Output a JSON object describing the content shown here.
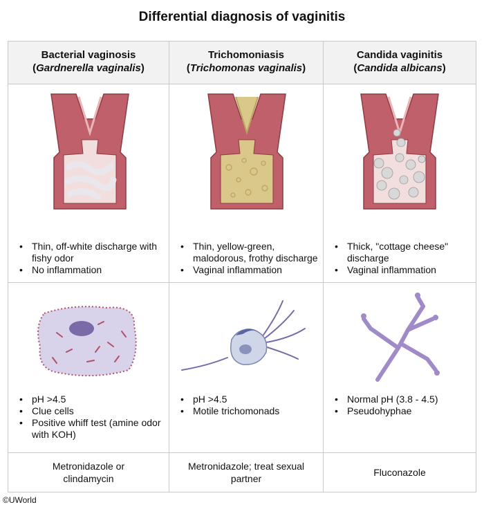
{
  "title": "Differential diagnosis of vaginitis",
  "columns": [
    {
      "name": "Bacterial vaginosis",
      "organism": "Gardnerella vaginalis",
      "clinical": [
        "Thin, off-white discharge with fishy odor",
        "No inflammation"
      ],
      "micro": [
        "pH >4.5",
        "Clue cells",
        "Positive whiff test (amine odor with KOH)"
      ],
      "treatment": "Metronidazole or clindamycin"
    },
    {
      "name": "Trichomoniasis",
      "organism": "Trichomonas vaginalis",
      "clinical": [
        "Thin, yellow-green, malodorous, frothy discharge",
        "Vaginal inflammation"
      ],
      "micro": [
        "pH >4.5",
        "Motile trichomonads"
      ],
      "treatment": "Metronidazole; treat sexual partner"
    },
    {
      "name": "Candida vaginitis",
      "organism": "Candida albicans",
      "clinical": [
        "Thick, \"cottage cheese\" discharge",
        "Vaginal inflammation"
      ],
      "micro": [
        "Normal pH (3.8 - 4.5)",
        "Pseudohyphae"
      ],
      "treatment": "Fluconazole"
    }
  ],
  "copyright": "©UWorld",
  "colors": {
    "tissue": "#c0606a",
    "tissue_dark": "#8e3a44",
    "lumen": "#f3dede",
    "trich_discharge": "#d9c88a",
    "candida_clump": "#d8d8d8",
    "cell_purple": "#a79cc8",
    "cilia": "#b0506a",
    "trich_body": "#9aa6c8",
    "hyphae": "#a08ac8"
  }
}
